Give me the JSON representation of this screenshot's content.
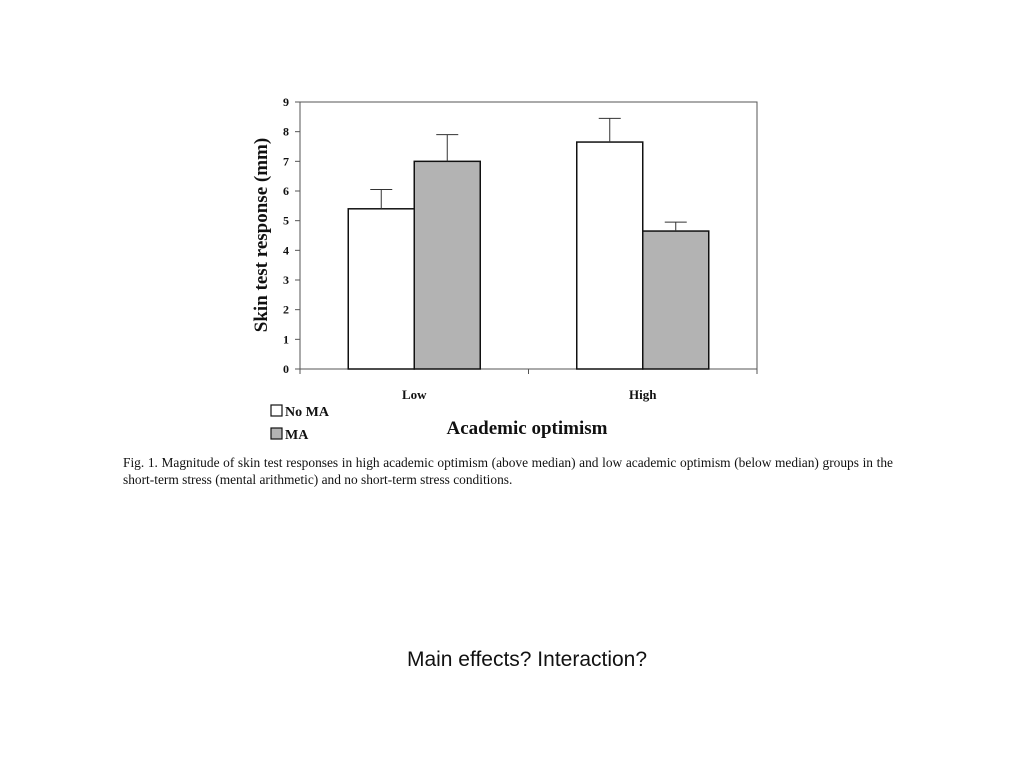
{
  "chart_data": {
    "type": "bar",
    "categories": [
      "Low",
      "High"
    ],
    "series": [
      {
        "name": "No MA",
        "values": [
          5.4,
          7.65
        ],
        "error": [
          0.65,
          0.8
        ],
        "color": "#ffffff"
      },
      {
        "name": "MA",
        "values": [
          7.0,
          4.65
        ],
        "error": [
          0.9,
          0.3
        ],
        "color": "#b3b3b3"
      }
    ],
    "xlabel": "Academic optimism",
    "ylabel": "Skin test response (mm)",
    "ylim": [
      0,
      9
    ],
    "yticks": [
      "0",
      "1",
      "2",
      "3",
      "4",
      "5",
      "6",
      "7",
      "8",
      "9"
    ],
    "grid": false,
    "legend_position": "bottom-left"
  },
  "caption": "Fig. 1. Magnitude of skin test responses in high academic optimism (above median) and low academic optimism (below median) groups in the short-term stress (mental arithmetic) and no short-term stress conditions.",
  "question": "Main effects?  Interaction?"
}
